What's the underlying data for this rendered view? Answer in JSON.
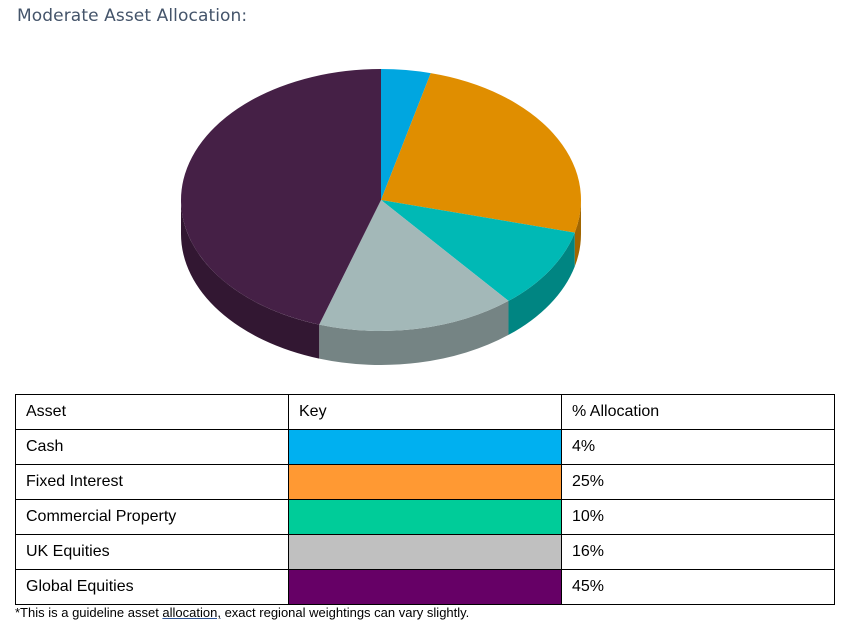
{
  "title": "Moderate Asset Allocation:",
  "chart_data": {
    "type": "pie",
    "style": "3d",
    "categories": [
      "Cash",
      "Fixed Interest",
      "Commercial Property",
      "UK Equities",
      "Global Equities"
    ],
    "values": [
      4,
      25,
      10,
      16,
      45
    ],
    "unit": "%",
    "colors": [
      "#00a6e0",
      "#e08e00",
      "#00b9b5",
      "#a3b8b8",
      "#452046"
    ]
  },
  "table": {
    "headers": {
      "asset": "Asset",
      "key": "Key",
      "allocation": "% Allocation"
    },
    "rows": [
      {
        "asset": "Cash",
        "key_color": "#00b0f0",
        "allocation": "4%"
      },
      {
        "asset": "Fixed Interest",
        "key_color": "#ff9933",
        "allocation": "25%"
      },
      {
        "asset": "Commercial Property",
        "key_color": "#00cc99",
        "allocation": "10%"
      },
      {
        "asset": "UK Equities",
        "key_color": "#c0c0c0",
        "allocation": "16%"
      },
      {
        "asset": "Global Equities",
        "key_color": "#660066",
        "allocation": "45%"
      }
    ]
  },
  "footnote": {
    "before": "*This is a guideline asset ",
    "underlined": "allocation,",
    "after": " exact regional weightings can vary slightly."
  }
}
